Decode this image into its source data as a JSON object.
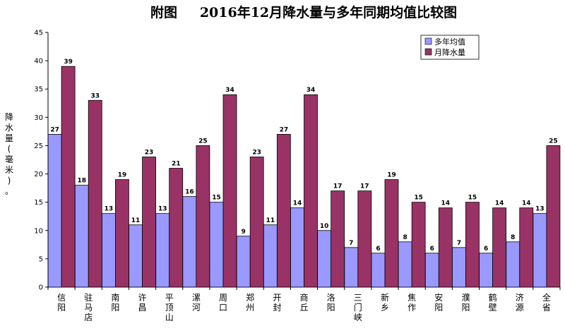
{
  "chart_data": {
    "type": "bar",
    "title_left": "附图",
    "title_main": "2016年12月降水量与多年同期均值比较图",
    "ylabel_chars": [
      "降",
      "水",
      "量",
      "(",
      "毫",
      "米",
      ")",
      "。"
    ],
    "ylim": [
      0,
      45
    ],
    "yticks": [
      "0",
      "5",
      "10",
      "15",
      "20",
      "25",
      "30",
      "35",
      "40",
      "45"
    ],
    "categories": [
      "信阳",
      "驻马店",
      "南阳",
      "许昌",
      "平顶山",
      "漯河",
      "周口",
      "郑州",
      "开封",
      "商丘",
      "洛阳",
      "三门峡",
      "新乡",
      "焦作",
      "安阳",
      "濮阳",
      "鹤壁",
      "济源",
      "全省"
    ],
    "series": [
      {
        "name": "多年均值",
        "color": "#9999ff",
        "values": [
          27,
          18,
          13,
          11,
          13,
          16,
          15,
          9,
          11,
          14,
          10,
          7,
          6,
          8,
          6,
          7,
          6,
          8,
          13
        ]
      },
      {
        "name": "月降水量",
        "color": "#993366",
        "values": [
          39,
          33,
          19,
          23,
          21,
          25,
          34,
          23,
          27,
          34,
          17,
          17,
          19,
          15,
          14,
          15,
          14,
          14,
          25
        ]
      }
    ],
    "legend_position": "top-right",
    "grid": false
  }
}
